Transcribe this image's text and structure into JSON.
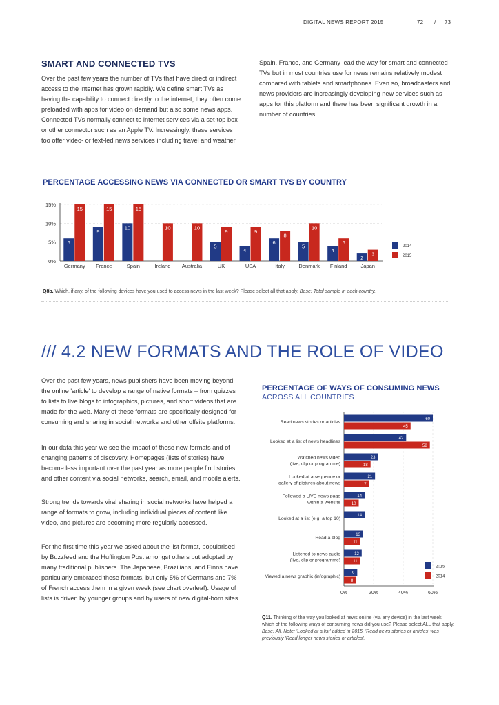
{
  "header": {
    "report_title": "DIGITAL NEWS REPORT 2015",
    "page_left": "72",
    "separator": "/",
    "page_right": "73"
  },
  "section1": {
    "heading": "SMART AND CONNECTED TVS",
    "paragraph_left": "Over the past few years the number of TVs that have direct or indirect access to the internet has grown rapidly. We define smart TVs as having the capability to connect directly to the internet; they often come preloaded with apps for video on demand but also some news apps. Connected TVs normally connect to internet services via a set-top box or other connector such as an Apple TV. Increasingly, these services too offer video- or text-led news services including travel and weather.",
    "paragraph_right": "Spain, France, and Germany lead the way for smart and connected TVs but in most countries use for news remains relatively modest compared with tablets and smartphones. Even so, broadcasters and news providers are increasingly developing new services such as apps for this platform and there has been significant growth in a number of countries."
  },
  "chart_data": [
    {
      "type": "bar",
      "title": "PERCENTAGE ACCESSING NEWS VIA CONNECTED OR SMART TVS BY COUNTRY",
      "categories": [
        "Germany",
        "France",
        "Spain",
        "Ireland",
        "Australia",
        "UK",
        "USA",
        "Italy",
        "Denmark",
        "Finland",
        "Japan"
      ],
      "series": [
        {
          "name": "2014",
          "color": "#213a86",
          "values": [
            6,
            9,
            10,
            null,
            null,
            5,
            4,
            6,
            5,
            4,
            2
          ]
        },
        {
          "name": "2015",
          "color": "#c8281e",
          "values": [
            15,
            15,
            15,
            10,
            10,
            9,
            9,
            8,
            10,
            6,
            3
          ]
        }
      ],
      "y_ticks": [
        "0%",
        "5%",
        "10%",
        "15%"
      ],
      "ylim": [
        0,
        15
      ],
      "legend_position": "right"
    },
    {
      "type": "bar",
      "orientation": "horizontal",
      "title": "PERCENTAGE OF WAYS OF CONSUMING NEWS",
      "subtitle": "ACROSS ALL COUNTRIES",
      "categories": [
        [
          "Read news stories or articles"
        ],
        [
          "Looked at a list of news headlines"
        ],
        [
          "Watched news video",
          "(live, clip or programme)"
        ],
        [
          "Looked at a sequence or",
          "gallery of pictures about news"
        ],
        [
          "Followed a LIVE news page",
          "within a website"
        ],
        [
          "Looked at a list (e.g. a top 10)"
        ],
        [
          "Read a blog"
        ],
        [
          "Listened to news audio",
          "(live, clip or programme)"
        ],
        [
          "Viewed a news graphic (infographic)"
        ]
      ],
      "series": [
        {
          "name": "2015",
          "color": "#213a86",
          "values": [
            60,
            42,
            23,
            21,
            14,
            14,
            13,
            12,
            9
          ]
        },
        {
          "name": "2014",
          "color": "#c8281e",
          "values": [
            45,
            58,
            18,
            17,
            10,
            null,
            11,
            11,
            8
          ]
        }
      ],
      "x_ticks": [
        "0%",
        "20%",
        "40%",
        "60%"
      ],
      "xlim": [
        0,
        60
      ],
      "legend_position": "bottom-right"
    }
  ],
  "chart1_question": {
    "code": "Q8b.",
    "text": " Which, if any, of the following devices have you used to access news in the last week? Please select all that apply. ",
    "base": "Base: Total sample in each country."
  },
  "section2": {
    "heading": "/// 4.2 NEW FORMATS AND THE ROLE OF VIDEO",
    "paragraphs": [
      "Over the past few years, news publishers have been moving beyond the online 'article' to develop a range of native formats – from quizzes to lists to live blogs to infographics, pictures, and short videos that are made for the web. Many of these formats are specifically designed for consuming and sharing in social networks and other offsite platforms.",
      "In our data this year we see the impact of these new formats and of changing patterns of discovery. Homepages (lists of stories) have become less important over the past year as more people find stories and other content via social networks, search, email, and mobile alerts.",
      "Strong trends towards viral sharing in social networks have helped a range of formats to grow, including individual pieces of content like video, and pictures are becoming more regularly accessed.",
      "For the first time this year we asked about the list format, popularised by Buzzfeed and the Huffington Post amongst others but adopted by many traditional publishers. The Japanese, Brazilians, and Finns have particularly embraced these formats, but only 5% of Germans and 7% of French access them in a given week (see chart overleaf). Usage of lists is driven by younger groups and by users of new digital-born sites."
    ]
  },
  "chart2_question": {
    "code": "Q11.",
    "text": " Thinking of the way you looked at news online (via any device) in the last week, which of the following ways of consuming news did you use? Please select ALL that apply. ",
    "base": "Base: All. Note: 'Looked at a list' added in 2015. 'Read news stories or articles' was previously 'Read longer news stories or articles'."
  }
}
